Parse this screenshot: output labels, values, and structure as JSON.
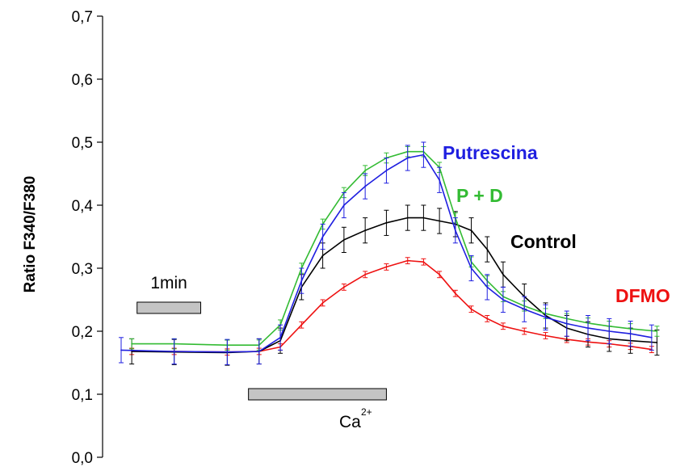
{
  "chart_data": {
    "type": "line",
    "title": "",
    "ylabel": "Ratio F340/F380",
    "xlabel": "",
    "ylim": [
      0,
      0.7
    ],
    "yticks": [
      "0,0",
      "0,1",
      "0,2",
      "0,3",
      "0,4",
      "0,5",
      "0,6",
      "0,7"
    ],
    "x_axis_shown": false,
    "x_units": "min",
    "grid": false,
    "legend": "labels placed next to each curve",
    "series": [
      {
        "name": "Putrescina",
        "color": "#1f1fe0",
        "x": [
          0,
          1,
          2,
          2.6,
          3,
          3.4,
          3.8,
          4.2,
          4.6,
          5,
          5.4,
          5.7,
          6,
          6.3,
          6.6,
          6.9,
          7.2,
          7.6,
          8,
          8.4,
          8.8,
          9.2,
          9.6,
          10
        ],
        "values": [
          0.17,
          0.168,
          0.167,
          0.168,
          0.19,
          0.28,
          0.35,
          0.4,
          0.43,
          0.455,
          0.475,
          0.48,
          0.44,
          0.36,
          0.3,
          0.27,
          0.25,
          0.235,
          0.222,
          0.212,
          0.205,
          0.2,
          0.196,
          0.19
        ],
        "error": 0.02
      },
      {
        "name": "P + D",
        "color": "#33bb33",
        "x": [
          0.2,
          1,
          2,
          2.6,
          3,
          3.4,
          3.8,
          4.2,
          4.6,
          5,
          5.4,
          5.7,
          6,
          6.3,
          6.6,
          6.9,
          7.2,
          7.6,
          8,
          8.4,
          8.8,
          9.2,
          9.6,
          10.1
        ],
        "values": [
          0.18,
          0.18,
          0.178,
          0.178,
          0.21,
          0.3,
          0.37,
          0.42,
          0.455,
          0.475,
          0.485,
          0.485,
          0.46,
          0.38,
          0.31,
          0.28,
          0.255,
          0.24,
          0.228,
          0.22,
          0.213,
          0.208,
          0.204,
          0.2
        ],
        "error": 0.008
      },
      {
        "name": "Control",
        "color": "#000000",
        "x": [
          0.2,
          1,
          2,
          2.6,
          3,
          3.4,
          3.8,
          4.2,
          4.6,
          5,
          5.4,
          5.7,
          6,
          6.3,
          6.6,
          6.9,
          7.2,
          7.6,
          8,
          8.4,
          8.8,
          9.2,
          9.6,
          10.1
        ],
        "values": [
          0.168,
          0.167,
          0.166,
          0.168,
          0.185,
          0.27,
          0.32,
          0.345,
          0.36,
          0.372,
          0.38,
          0.38,
          0.375,
          0.37,
          0.36,
          0.33,
          0.29,
          0.255,
          0.225,
          0.205,
          0.195,
          0.188,
          0.185,
          0.182
        ],
        "error": 0.02
      },
      {
        "name": "DFMO",
        "color": "#ee1111",
        "x": [
          0.2,
          1,
          2,
          2.6,
          3,
          3.4,
          3.8,
          4.2,
          4.6,
          5,
          5.4,
          5.7,
          6,
          6.3,
          6.6,
          6.9,
          7.2,
          7.6,
          8,
          8.4,
          8.8,
          9.2,
          9.6,
          10
        ],
        "values": [
          0.168,
          0.168,
          0.167,
          0.168,
          0.175,
          0.21,
          0.245,
          0.27,
          0.29,
          0.302,
          0.312,
          0.31,
          0.29,
          0.26,
          0.235,
          0.22,
          0.208,
          0.2,
          0.193,
          0.187,
          0.183,
          0.18,
          0.176,
          0.171
        ],
        "error": 0.005
      }
    ],
    "annotations": {
      "scale_bar": {
        "label": "1min",
        "x_start": 0.3,
        "x_end": 1.5,
        "y": 0.235
      },
      "stimulus_bar": {
        "label": "Ca",
        "superscript": "2+",
        "x_start": 2.4,
        "x_end": 5.0,
        "y": 0.1
      }
    }
  }
}
